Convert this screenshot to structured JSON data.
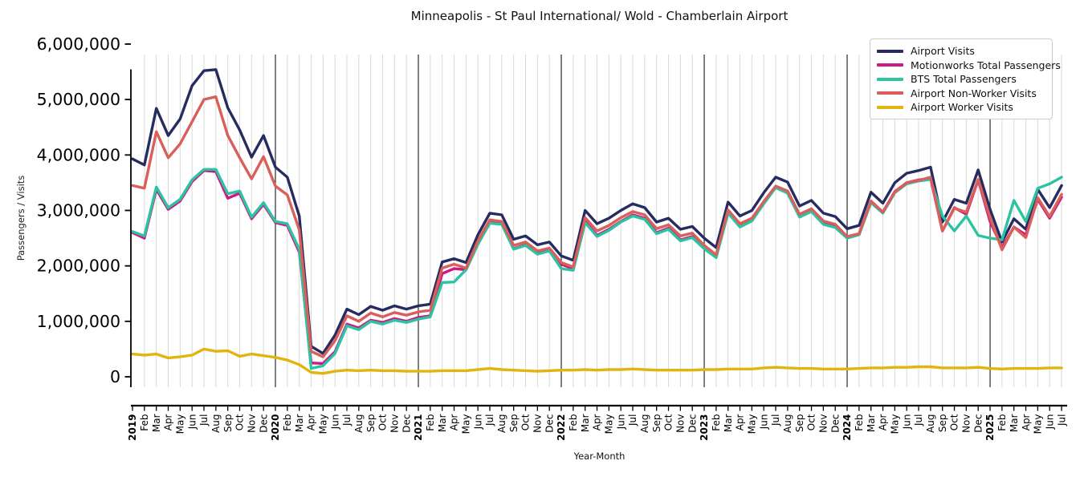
{
  "chart_data": {
    "type": "line",
    "title": "Minneapolis - St Paul International/ Wold - Chamberlain Airport",
    "xlabel": "Year-Month",
    "ylabel": "Passengers / Visits",
    "values_unit": "millions of passengers / visits per month",
    "ylim": [
      0,
      6000000
    ],
    "grid": "vertical monthly gridlines, darker lines at each January",
    "legend_position": "upper right",
    "y_ticks": [
      {
        "value": 0,
        "label": "0"
      },
      {
        "value": 1,
        "label": "1,000,000"
      },
      {
        "value": 2,
        "label": "2,000,000"
      },
      {
        "value": 3,
        "label": "3,000,000"
      },
      {
        "value": 4,
        "label": "4,000,000"
      },
      {
        "value": 5,
        "label": "5,000,000"
      },
      {
        "value": 6,
        "label": "6,000,000"
      }
    ],
    "x_labels": [
      "2019",
      "Feb",
      "Mar",
      "Apr",
      "May",
      "Jun",
      "Jul",
      "Aug",
      "Sep",
      "Oct",
      "Nov",
      "Dec",
      "2020",
      "Feb",
      "Mar",
      "Apr",
      "May",
      "Jun",
      "Jul",
      "Aug",
      "Sep",
      "Oct",
      "Nov",
      "Dec",
      "2021",
      "Feb",
      "Mar",
      "Apr",
      "May",
      "Jun",
      "Jul",
      "Aug",
      "Sep",
      "Oct",
      "Nov",
      "Dec",
      "2022",
      "Feb",
      "Mar",
      "Apr",
      "May",
      "Jun",
      "Jul",
      "Aug",
      "Sep",
      "Oct",
      "Nov",
      "Dec",
      "2023",
      "Feb",
      "Mar",
      "Apr",
      "May",
      "Jun",
      "Jul",
      "Aug",
      "Sep",
      "Oct",
      "Nov",
      "Dec",
      "2024",
      "Feb",
      "Mar",
      "Apr",
      "May",
      "Jun",
      "Jul",
      "Aug",
      "Sep",
      "Oct",
      "Nov",
      "Dec",
      "2025",
      "Feb",
      "Mar",
      "Apr",
      "May",
      "Jun",
      "Jul"
    ],
    "year_label_indices": [
      0,
      12,
      24,
      36,
      48,
      60,
      72
    ],
    "year_line_indices": [
      12,
      24,
      36,
      48,
      60,
      72
    ],
    "colors": {
      "grid": "#d9d9d9",
      "year_line": "#2b2b2b",
      "spine": "#000000",
      "background": "#ffffff"
    },
    "series": [
      {
        "name": "Airport Visits",
        "color": "#262c5f",
        "values": [
          3.93,
          3.82,
          4.84,
          4.35,
          4.65,
          5.25,
          5.52,
          5.54,
          4.85,
          4.45,
          3.96,
          4.35,
          3.78,
          3.6,
          2.9,
          0.55,
          0.42,
          0.75,
          1.22,
          1.12,
          1.27,
          1.2,
          1.28,
          1.22,
          1.28,
          1.31,
          2.07,
          2.13,
          2.06,
          2.56,
          2.95,
          2.92,
          2.48,
          2.54,
          2.38,
          2.43,
          2.18,
          2.1,
          3.0,
          2.76,
          2.86,
          3.0,
          3.12,
          3.05,
          2.79,
          2.86,
          2.66,
          2.71,
          2.5,
          2.33,
          3.15,
          2.9,
          3.0,
          3.32,
          3.6,
          3.51,
          3.08,
          3.18,
          2.95,
          2.89,
          2.67,
          2.73,
          3.33,
          3.13,
          3.5,
          3.67,
          3.72,
          3.78,
          2.79,
          3.2,
          3.13,
          3.73,
          3.02,
          2.43,
          2.85,
          2.66,
          3.38,
          3.05,
          3.45
        ]
      },
      {
        "name": "Motionworks Total Passengers",
        "color": "#ce1884",
        "values": [
          2.6,
          2.5,
          3.38,
          3.02,
          3.17,
          3.52,
          3.72,
          3.7,
          3.22,
          3.31,
          2.85,
          3.11,
          2.78,
          2.73,
          2.25,
          0.25,
          0.24,
          0.45,
          0.95,
          0.88,
          1.02,
          0.98,
          1.05,
          1.0,
          1.07,
          1.1,
          1.86,
          1.95,
          1.93,
          2.4,
          2.78,
          2.76,
          2.31,
          2.38,
          2.22,
          2.28,
          2.03,
          1.95,
          2.8,
          2.55,
          2.66,
          2.8,
          2.92,
          2.86,
          2.6,
          2.68,
          2.47,
          2.53,
          2.33,
          2.17,
          2.97,
          2.72,
          2.83,
          3.14,
          3.43,
          3.33,
          2.9,
          3.0,
          2.77,
          2.71,
          2.52,
          2.58,
          3.16,
          2.97,
          3.34,
          3.5,
          3.55,
          3.58,
          2.63,
          3.05,
          2.93,
          3.55,
          2.8,
          2.33,
          2.7,
          2.56,
          3.2,
          2.86,
          3.24
        ]
      },
      {
        "name": "BTS Total Passengers",
        "color": "#2cc3a2",
        "values": [
          2.62,
          2.54,
          3.42,
          3.05,
          3.2,
          3.55,
          3.74,
          3.74,
          3.3,
          3.35,
          2.88,
          3.14,
          2.8,
          2.76,
          2.3,
          0.15,
          0.2,
          0.42,
          0.92,
          0.85,
          1.0,
          0.95,
          1.02,
          0.98,
          1.04,
          1.08,
          1.7,
          1.71,
          1.93,
          2.39,
          2.77,
          2.75,
          2.3,
          2.37,
          2.21,
          2.27,
          1.95,
          1.92,
          2.78,
          2.53,
          2.64,
          2.79,
          2.9,
          2.84,
          2.58,
          2.66,
          2.45,
          2.51,
          2.31,
          2.15,
          2.95,
          2.7,
          2.81,
          3.12,
          3.41,
          3.31,
          2.88,
          2.98,
          2.75,
          2.69,
          2.5,
          2.56,
          3.14,
          2.95,
          3.32,
          3.48,
          3.53,
          3.56,
          2.9,
          2.63,
          2.9,
          2.55,
          2.5,
          2.47,
          3.18,
          2.8,
          3.4,
          3.48,
          3.6
        ]
      },
      {
        "name": "Airport Non-Worker Visits",
        "color": "#d95f5b",
        "values": [
          3.45,
          3.4,
          4.42,
          3.95,
          4.2,
          4.6,
          5.0,
          5.05,
          4.35,
          3.95,
          3.57,
          3.97,
          3.44,
          3.28,
          2.65,
          0.46,
          0.36,
          0.65,
          1.1,
          1.0,
          1.15,
          1.08,
          1.16,
          1.11,
          1.17,
          1.2,
          1.96,
          2.03,
          1.96,
          2.45,
          2.83,
          2.8,
          2.37,
          2.43,
          2.27,
          2.32,
          2.06,
          1.98,
          2.87,
          2.63,
          2.73,
          2.87,
          2.98,
          2.92,
          2.67,
          2.74,
          2.54,
          2.59,
          2.37,
          2.2,
          3.01,
          2.76,
          2.86,
          3.16,
          3.44,
          3.35,
          2.93,
          3.03,
          2.81,
          2.75,
          2.53,
          2.58,
          3.17,
          2.97,
          3.33,
          3.5,
          3.54,
          3.6,
          2.63,
          3.04,
          2.97,
          3.56,
          2.87,
          2.29,
          2.7,
          2.51,
          3.23,
          2.89,
          3.29
        ]
      },
      {
        "name": "Airport Worker Visits",
        "color": "#e2b50e",
        "values": [
          0.41,
          0.39,
          0.41,
          0.34,
          0.36,
          0.39,
          0.5,
          0.46,
          0.47,
          0.37,
          0.41,
          0.38,
          0.35,
          0.3,
          0.22,
          0.08,
          0.06,
          0.1,
          0.12,
          0.11,
          0.12,
          0.11,
          0.11,
          0.1,
          0.1,
          0.1,
          0.11,
          0.11,
          0.11,
          0.13,
          0.15,
          0.13,
          0.12,
          0.11,
          0.1,
          0.11,
          0.12,
          0.12,
          0.13,
          0.12,
          0.13,
          0.13,
          0.14,
          0.13,
          0.12,
          0.12,
          0.12,
          0.12,
          0.13,
          0.13,
          0.14,
          0.14,
          0.14,
          0.16,
          0.17,
          0.16,
          0.15,
          0.15,
          0.14,
          0.14,
          0.14,
          0.15,
          0.16,
          0.16,
          0.17,
          0.17,
          0.18,
          0.18,
          0.16,
          0.16,
          0.16,
          0.17,
          0.15,
          0.14,
          0.15,
          0.15,
          0.15,
          0.16,
          0.16
        ]
      }
    ]
  }
}
